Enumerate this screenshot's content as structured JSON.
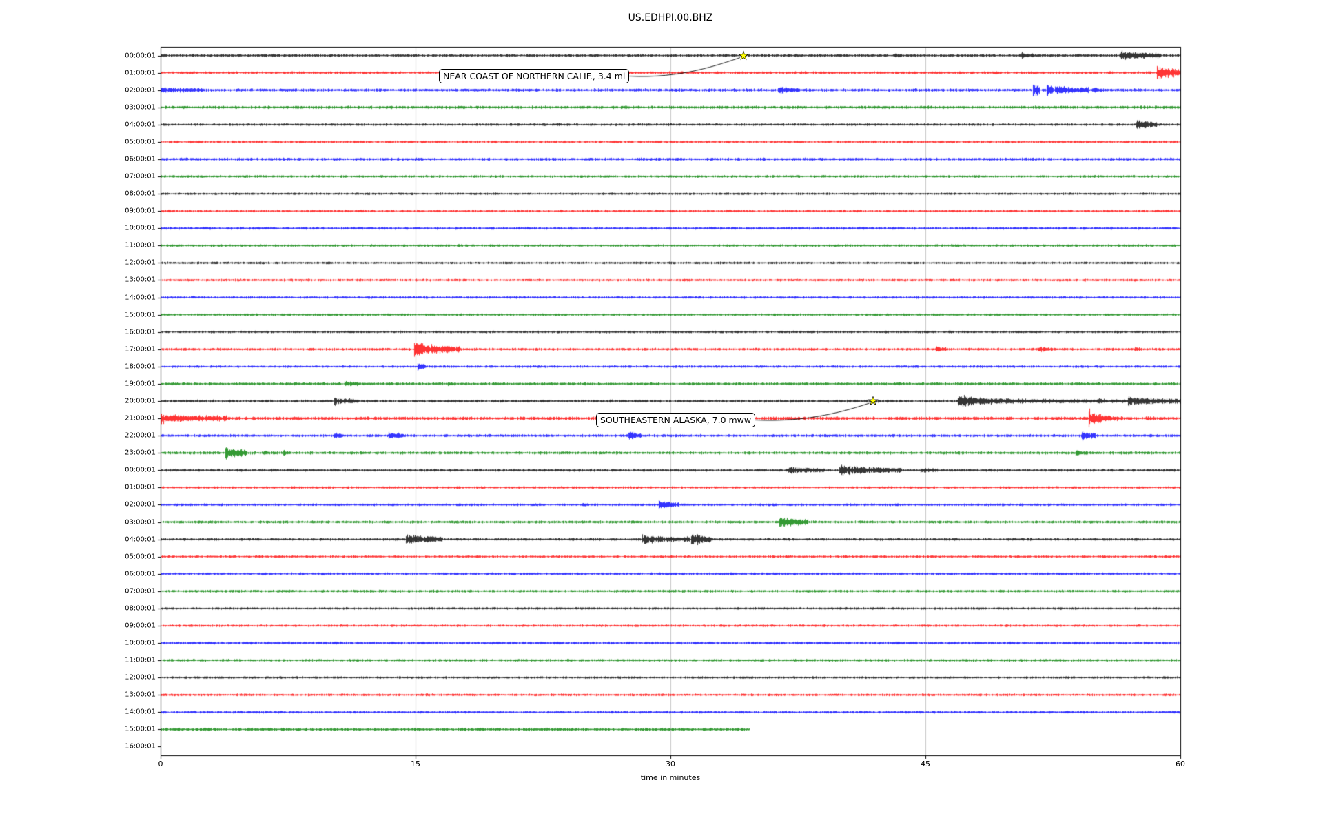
{
  "chart_data": {
    "type": "line",
    "title": "US.EDHPI.00.BHZ",
    "xlabel": "time in minutes",
    "x_range_minutes": [
      0,
      60
    ],
    "x_ticks": [
      0,
      15,
      30,
      45,
      60
    ],
    "grid_vertical_minutes": [
      15,
      30,
      45
    ],
    "trace_color_cycle": [
      "#000000",
      "#ff0000",
      "#0000ff",
      "#008000"
    ],
    "rows": [
      {
        "label": "00:00:01",
        "color": "#000000",
        "noise": 1.8,
        "bursts": [
          [
            43.2,
            43.6,
            1.5
          ],
          [
            50.6,
            51.4,
            2.5
          ],
          [
            56.4,
            58.8,
            5
          ]
        ]
      },
      {
        "label": "01:00:01",
        "color": "#ff0000",
        "noise": 1.7,
        "bursts": [
          [
            58.6,
            60,
            9
          ]
        ]
      },
      {
        "label": "02:00:01",
        "color": "#0000ff",
        "noise": 2.0,
        "bursts": [
          [
            0,
            2.6,
            2.2
          ],
          [
            36.3,
            37.6,
            3.5
          ],
          [
            51.3,
            51.7,
            11
          ],
          [
            52.1,
            52.5,
            12
          ],
          [
            52.6,
            54.6,
            4.5
          ],
          [
            54.8,
            55.6,
            2.5
          ]
        ]
      },
      {
        "label": "03:00:01",
        "color": "#008000",
        "noise": 1.9,
        "bursts": []
      },
      {
        "label": "04:00:01",
        "color": "#000000",
        "noise": 1.6,
        "bursts": [
          [
            57.4,
            58.6,
            6
          ]
        ]
      },
      {
        "label": "05:00:01",
        "color": "#ff0000",
        "noise": 1.5,
        "bursts": []
      },
      {
        "label": "06:00:01",
        "color": "#0000ff",
        "noise": 1.8,
        "bursts": []
      },
      {
        "label": "07:00:01",
        "color": "#008000",
        "noise": 1.6,
        "bursts": []
      },
      {
        "label": "08:00:01",
        "color": "#000000",
        "noise": 1.5,
        "bursts": []
      },
      {
        "label": "09:00:01",
        "color": "#ff0000",
        "noise": 1.5,
        "bursts": []
      },
      {
        "label": "10:00:01",
        "color": "#0000ff",
        "noise": 1.7,
        "bursts": []
      },
      {
        "label": "11:00:01",
        "color": "#008000",
        "noise": 1.6,
        "bursts": []
      },
      {
        "label": "12:00:01",
        "color": "#000000",
        "noise": 1.5,
        "bursts": []
      },
      {
        "label": "13:00:01",
        "color": "#ff0000",
        "noise": 1.6,
        "bursts": []
      },
      {
        "label": "14:00:01",
        "color": "#0000ff",
        "noise": 1.6,
        "bursts": []
      },
      {
        "label": "15:00:01",
        "color": "#008000",
        "noise": 1.5,
        "bursts": []
      },
      {
        "label": "16:00:01",
        "color": "#000000",
        "noise": 1.5,
        "bursts": []
      },
      {
        "label": "17:00:01",
        "color": "#ff0000",
        "noise": 1.7,
        "bursts": [
          [
            14.9,
            17.6,
            8
          ],
          [
            45.6,
            46.3,
            2.5
          ],
          [
            51.6,
            52.6,
            2.5
          ],
          [
            57.3,
            57.7,
            1.5
          ]
        ]
      },
      {
        "label": "18:00:01",
        "color": "#0000ff",
        "noise": 1.6,
        "bursts": [
          [
            15.1,
            15.6,
            5
          ]
        ]
      },
      {
        "label": "19:00:01",
        "color": "#008000",
        "noise": 1.8,
        "bursts": [
          [
            10.8,
            11.6,
            2.5
          ],
          [
            16.9,
            17.3,
            1.5
          ]
        ]
      },
      {
        "label": "20:00:01",
        "color": "#000000",
        "noise": 1.8,
        "bursts": [
          [
            10.2,
            11.6,
            3.5
          ],
          [
            46.9,
            49.3,
            6.5
          ],
          [
            49.3,
            56.9,
            2.2
          ],
          [
            55.1,
            55.5,
            4
          ],
          [
            56.9,
            60,
            4.5
          ]
        ]
      },
      {
        "label": "21:00:01",
        "color": "#ff0000",
        "noise": 2.2,
        "bursts": [
          [
            0,
            3.9,
            4.5
          ],
          [
            54.6,
            55.2,
            10
          ],
          [
            55.2,
            56.6,
            3.5
          ],
          [
            58,
            58.4,
            2
          ]
        ]
      },
      {
        "label": "22:00:01",
        "color": "#0000ff",
        "noise": 1.8,
        "bursts": [
          [
            10.2,
            10.7,
            2.5
          ],
          [
            13.4,
            14.3,
            3.5
          ],
          [
            27.5,
            28.3,
            5
          ],
          [
            54.2,
            55,
            5.5
          ]
        ]
      },
      {
        "label": "23:00:01",
        "color": "#008000",
        "noise": 1.9,
        "bursts": [
          [
            3.8,
            5.1,
            7
          ],
          [
            6,
            6.4,
            2
          ],
          [
            7.2,
            7.7,
            2.5
          ],
          [
            53.8,
            54.5,
            2.5
          ]
        ]
      },
      {
        "label": "00:00:01",
        "color": "#000000",
        "noise": 1.7,
        "bursts": [
          [
            36.9,
            39.1,
            4
          ],
          [
            39.9,
            43.6,
            5.5
          ],
          [
            44.7,
            45.7,
            2.5
          ]
        ]
      },
      {
        "label": "01:00:01",
        "color": "#ff0000",
        "noise": 1.5,
        "bursts": []
      },
      {
        "label": "02:00:01",
        "color": "#0000ff",
        "noise": 1.6,
        "bursts": [
          [
            24.8,
            25.2,
            1.5
          ],
          [
            29.3,
            30.5,
            4.5
          ]
        ]
      },
      {
        "label": "03:00:01",
        "color": "#008000",
        "noise": 1.8,
        "bursts": [
          [
            36.4,
            38.1,
            6.5
          ]
        ]
      },
      {
        "label": "04:00:01",
        "color": "#000000",
        "noise": 1.7,
        "bursts": [
          [
            14.4,
            16.6,
            5.5
          ],
          [
            28.3,
            31.1,
            4.5
          ],
          [
            31.2,
            32.4,
            8
          ]
        ]
      },
      {
        "label": "05:00:01",
        "color": "#ff0000",
        "noise": 1.5,
        "bursts": []
      },
      {
        "label": "06:00:01",
        "color": "#0000ff",
        "noise": 1.6,
        "bursts": []
      },
      {
        "label": "07:00:01",
        "color": "#008000",
        "noise": 1.7,
        "bursts": []
      },
      {
        "label": "08:00:01",
        "color": "#000000",
        "noise": 1.5,
        "bursts": []
      },
      {
        "label": "09:00:01",
        "color": "#ff0000",
        "noise": 1.5,
        "bursts": []
      },
      {
        "label": "10:00:01",
        "color": "#0000ff",
        "noise": 1.7,
        "bursts": []
      },
      {
        "label": "11:00:01",
        "color": "#008000",
        "noise": 1.6,
        "bursts": []
      },
      {
        "label": "12:00:01",
        "color": "#000000",
        "noise": 1.5,
        "bursts": []
      },
      {
        "label": "13:00:01",
        "color": "#ff0000",
        "noise": 1.6,
        "bursts": []
      },
      {
        "label": "14:00:01",
        "color": "#0000ff",
        "noise": 1.6,
        "bursts": []
      },
      {
        "label": "15:00:01",
        "color": "#008000",
        "noise": 1.9,
        "bursts": [],
        "end_minute": 34.7
      },
      {
        "label": "16:00:01",
        "color": "#000000",
        "noise": 0,
        "bursts": [],
        "end_minute": 0
      }
    ],
    "events": [
      {
        "label": "NEAR COAST OF NORTHERN CALIF., 3.4 ml",
        "row_index": 0,
        "minute": 34.3,
        "marker": "yellow-star"
      },
      {
        "label": "SOUTHEASTERN ALASKA, 7.0 mww",
        "row_index": 20,
        "minute": 41.9,
        "marker": "yellow-star"
      }
    ]
  }
}
